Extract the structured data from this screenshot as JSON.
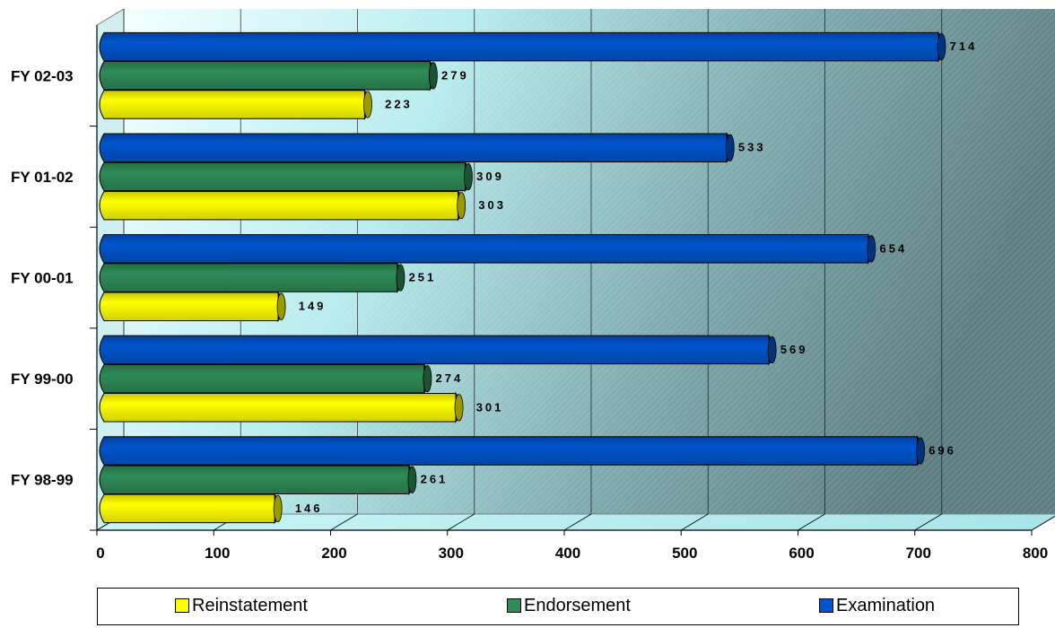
{
  "chart_data": {
    "type": "bar",
    "orientation": "horizontal",
    "categories": [
      "FY 98-99",
      "FY 99-00",
      "FY 00-01",
      "FY 01-02",
      "FY 02-03"
    ],
    "series": [
      {
        "name": "Reinstatement",
        "color": "#ffff00",
        "values": [
          146,
          301,
          149,
          303,
          223
        ]
      },
      {
        "name": "Endorsement",
        "color": "#2e8b57",
        "values": [
          261,
          274,
          251,
          309,
          279
        ]
      },
      {
        "name": "Examination",
        "color": "#0055cc",
        "values": [
          696,
          569,
          654,
          533,
          714
        ]
      }
    ],
    "xlim": [
      0,
      800
    ],
    "xticks": [
      "0",
      "100",
      "200",
      "300",
      "400",
      "500",
      "600",
      "700",
      "800"
    ],
    "grid": true,
    "legend_position": "bottom",
    "title": "",
    "xlabel": "",
    "ylabel": ""
  }
}
